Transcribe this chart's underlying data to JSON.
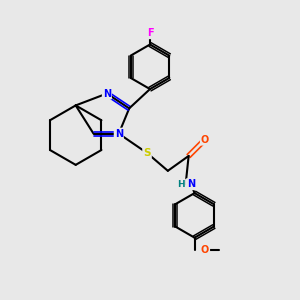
{
  "bg_color": "#e8e8e8",
  "bond_color": "#000000",
  "atom_colors": {
    "N": "#0000ff",
    "S": "#cccc00",
    "O_carbonyl": "#ff4400",
    "O_methoxy": "#ff4400",
    "N_amide": "#0000ff",
    "H": "#008080",
    "F": "#ff00ff",
    "C": "#000000"
  },
  "figsize": [
    3.0,
    3.0
  ],
  "dpi": 100
}
